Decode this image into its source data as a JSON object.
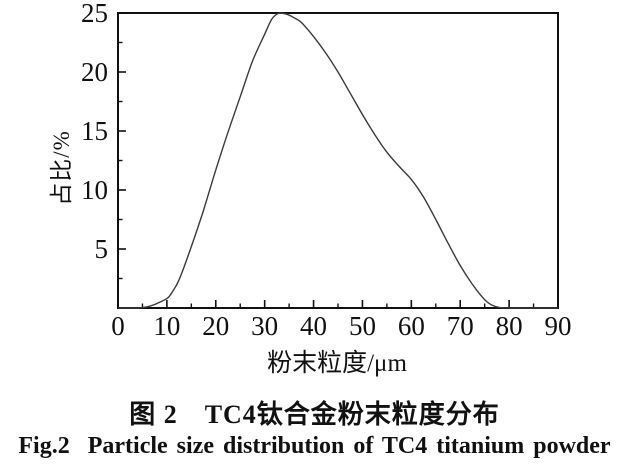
{
  "figure": {
    "caption_zh": "图 2　TC4钛合金粉末粒度分布",
    "caption_en": "Fig.2  Particle size distribution of TC4 titanium powder"
  },
  "chart_data": {
    "type": "line",
    "title": "",
    "xlabel": "粉末粒度/μm",
    "ylabel": "占比/%",
    "xlim": [
      0,
      90
    ],
    "ylim": [
      0,
      25
    ],
    "x_ticks": [
      0,
      10,
      20,
      30,
      40,
      50,
      60,
      70,
      80,
      90
    ],
    "x_minor_ticks": [
      5,
      15,
      25,
      35,
      45,
      55,
      65,
      75,
      85
    ],
    "y_ticks": [
      5,
      10,
      15,
      20,
      25
    ],
    "y_minor_ticks": [
      2.5,
      7.5,
      12.5,
      17.5,
      22.5
    ],
    "grid": false,
    "legend": "none",
    "line_color": "#3a3a3a",
    "axis_color": "#111111",
    "series": [
      {
        "name": "TC4 powder size distribution",
        "points": [
          [
            0,
            0
          ],
          [
            4,
            0
          ],
          [
            5,
            0.05
          ],
          [
            6,
            0.1
          ],
          [
            7.5,
            0.3
          ],
          [
            10,
            0.8
          ],
          [
            11,
            1.3
          ],
          [
            12.5,
            2.4
          ],
          [
            15,
            5.2
          ],
          [
            17.5,
            8.3
          ],
          [
            20,
            11.7
          ],
          [
            22.5,
            14.9
          ],
          [
            25,
            17.9
          ],
          [
            27.5,
            20.9
          ],
          [
            30,
            23.2
          ],
          [
            31.5,
            24.5
          ],
          [
            33,
            25
          ],
          [
            34.5,
            24.9
          ],
          [
            36,
            24.6
          ],
          [
            37.5,
            24.2
          ],
          [
            40,
            23
          ],
          [
            42.5,
            21.6
          ],
          [
            45,
            20
          ],
          [
            47.5,
            18.2
          ],
          [
            50,
            16.4
          ],
          [
            52.5,
            14.7
          ],
          [
            55,
            13.2
          ],
          [
            57.5,
            12
          ],
          [
            60,
            10.9
          ],
          [
            62.5,
            9.4
          ],
          [
            65,
            7.5
          ],
          [
            67.5,
            5.5
          ],
          [
            70,
            3.6
          ],
          [
            72.5,
            2
          ],
          [
            75,
            0.7
          ],
          [
            76.5,
            0.25
          ],
          [
            78,
            0.05
          ],
          [
            80,
            0
          ],
          [
            85,
            0
          ],
          [
            90,
            0
          ]
        ]
      }
    ]
  }
}
